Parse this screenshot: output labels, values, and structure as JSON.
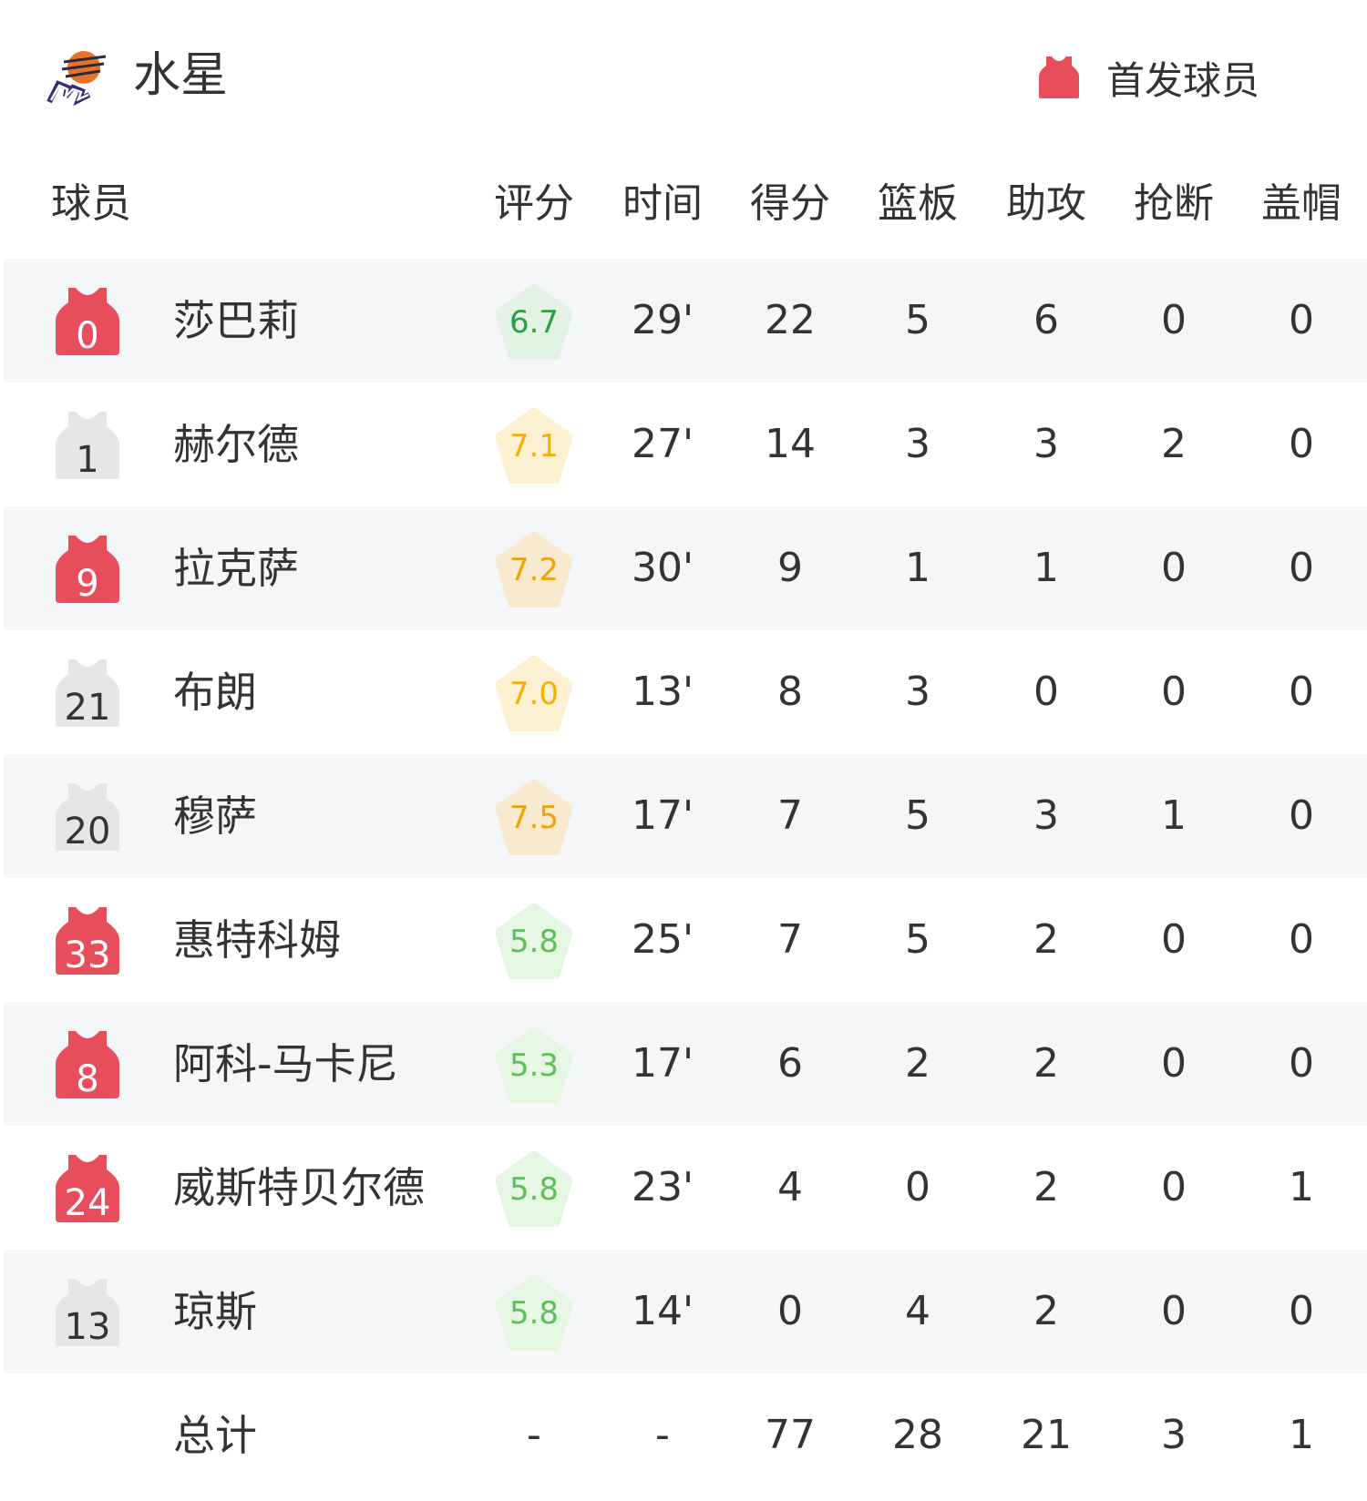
{
  "header": {
    "team_name": "水星",
    "logo_icon": "phoenix-mercury-logo",
    "starter_legend": "首发球员",
    "starter_color": "#e84d5b"
  },
  "columns": [
    "球员",
    "评分",
    "时间",
    "得分",
    "篮板",
    "助攻",
    "抢断",
    "盖帽"
  ],
  "colors": {
    "starter_jersey": "#e84d5b",
    "bench_jersey": "#e6e6e6",
    "row_alt": "#f5f6f8"
  },
  "players": [
    {
      "number": "0",
      "name": "莎巴莉",
      "starter": true,
      "rating": "6.7",
      "rating_tier": "green",
      "time": "29'",
      "pts": "22",
      "reb": "5",
      "ast": "6",
      "stl": "0",
      "blk": "0"
    },
    {
      "number": "1",
      "name": "赫尔德",
      "starter": false,
      "rating": "7.1",
      "rating_tier": "yellow",
      "time": "27'",
      "pts": "14",
      "reb": "3",
      "ast": "3",
      "stl": "2",
      "blk": "0"
    },
    {
      "number": "9",
      "name": "拉克萨",
      "starter": true,
      "rating": "7.2",
      "rating_tier": "orange",
      "time": "30'",
      "pts": "9",
      "reb": "1",
      "ast": "1",
      "stl": "0",
      "blk": "0"
    },
    {
      "number": "21",
      "name": "布朗",
      "starter": false,
      "rating": "7.0",
      "rating_tier": "yellow",
      "time": "13'",
      "pts": "8",
      "reb": "3",
      "ast": "0",
      "stl": "0",
      "blk": "0"
    },
    {
      "number": "20",
      "name": "穆萨",
      "starter": false,
      "rating": "7.5",
      "rating_tier": "orange",
      "time": "17'",
      "pts": "7",
      "reb": "5",
      "ast": "3",
      "stl": "1",
      "blk": "0"
    },
    {
      "number": "33",
      "name": "惠特科姆",
      "starter": true,
      "rating": "5.8",
      "rating_tier": "light-green",
      "time": "25'",
      "pts": "7",
      "reb": "5",
      "ast": "2",
      "stl": "0",
      "blk": "0"
    },
    {
      "number": "8",
      "name": "阿科-马卡尼",
      "starter": true,
      "rating": "5.3",
      "rating_tier": "light-green",
      "time": "17'",
      "pts": "6",
      "reb": "2",
      "ast": "2",
      "stl": "0",
      "blk": "0"
    },
    {
      "number": "24",
      "name": "威斯特贝尔德",
      "starter": true,
      "rating": "5.8",
      "rating_tier": "light-green",
      "time": "23'",
      "pts": "4",
      "reb": "0",
      "ast": "2",
      "stl": "0",
      "blk": "1"
    },
    {
      "number": "13",
      "name": "琼斯",
      "starter": false,
      "rating": "5.8",
      "rating_tier": "light-green",
      "time": "14'",
      "pts": "0",
      "reb": "4",
      "ast": "2",
      "stl": "0",
      "blk": "0"
    }
  ],
  "totals": {
    "label": "总计",
    "rating": "-",
    "time": "-",
    "pts": "77",
    "reb": "28",
    "ast": "21",
    "stl": "3",
    "blk": "1"
  },
  "rating_colors": {
    "green": {
      "text": "#2aa043",
      "bg": "#e2f3e6"
    },
    "yellow": {
      "text": "#f5b200",
      "bg": "#fdf1d4"
    },
    "orange": {
      "text": "#f0a400",
      "bg": "#f8e9cf"
    },
    "light-green": {
      "text": "#5cc05a",
      "bg": "#e5f6e2"
    }
  }
}
